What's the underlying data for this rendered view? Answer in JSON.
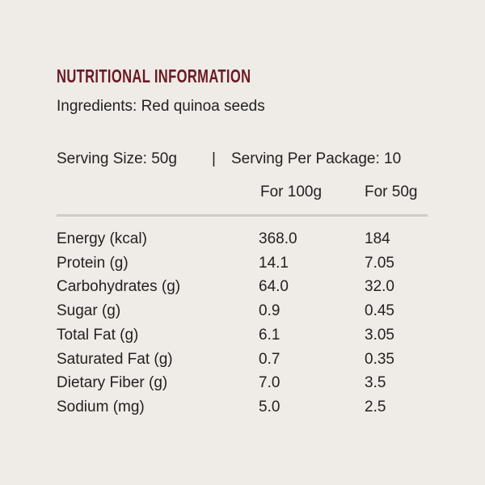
{
  "header": {
    "title": "NUTRITIONAL INFORMATION",
    "ingredients": "Ingredients: Red quinoa seeds"
  },
  "serving": {
    "size": "Serving Size: 50g",
    "separator": "|",
    "per_package": "Serving Per Package: 10"
  },
  "table": {
    "columns": [
      "For 100g",
      "For 50g"
    ],
    "rows": [
      [
        "Energy (kcal)",
        "368.0",
        "184"
      ],
      [
        "Protein (g)",
        "14.1",
        "7.05"
      ],
      [
        "Carbohydrates (g)",
        "64.0",
        "32.0"
      ],
      [
        "Sugar (g)",
        "0.9",
        "0.45"
      ],
      [
        "Total Fat (g)",
        "6.1",
        "3.05"
      ],
      [
        "Saturated Fat (g)",
        "0.7",
        "0.35"
      ],
      [
        "Dietary Fiber (g)",
        "7.0",
        "3.5"
      ],
      [
        "Sodium (mg)",
        "5.0",
        "2.5"
      ]
    ]
  }
}
